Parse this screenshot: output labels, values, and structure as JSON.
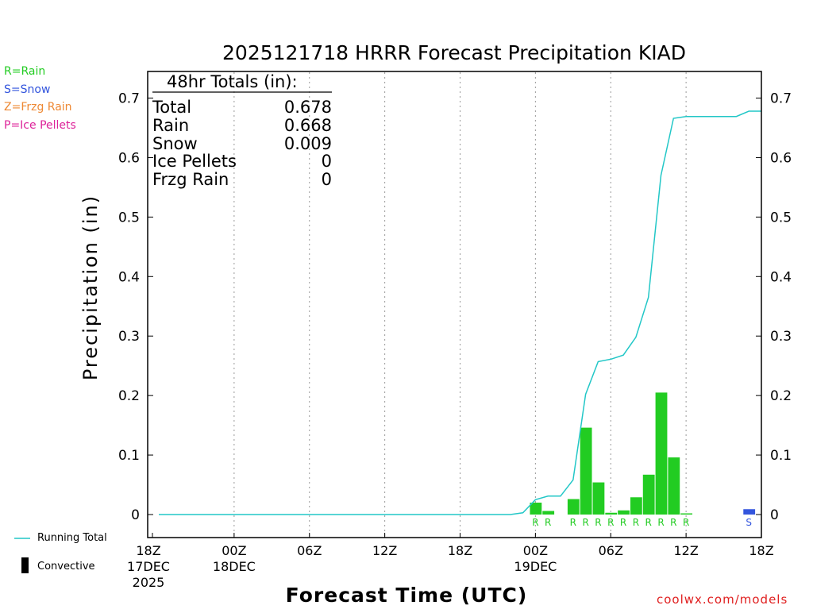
{
  "title": "2025121718 HRRR Forecast Precipitation KIAD",
  "legend": {
    "items": [
      {
        "label": "R=Rain",
        "color": "#22cc22"
      },
      {
        "label": "S=Snow",
        "color": "#3355dd"
      },
      {
        "label": "Z=Frzg Rain",
        "color": "#ee8833"
      },
      {
        "label": "P=Ice Pellets",
        "color": "#dd2299"
      }
    ],
    "running_total": "Running Total",
    "convective": "Convective"
  },
  "totals": {
    "header": "48hr Totals (in):",
    "rows": [
      {
        "label": "Total",
        "value": "0.678"
      },
      {
        "label": "Rain",
        "value": "0.668"
      },
      {
        "label": "Snow",
        "value": "0.009"
      },
      {
        "label": "Ice Pellets",
        "value": "0"
      },
      {
        "label": "Frzg Rain",
        "value": "0"
      }
    ]
  },
  "credit": "coolwx.com/models",
  "chart_data": {
    "type": "bar",
    "title": "2025121718 HRRR Forecast Precipitation KIAD",
    "xlabel": "Forecast Time (UTC)",
    "ylabel": "Precipitation (in)",
    "ylim": [
      -0.04,
      0.75
    ],
    "xlim_hours": [
      0,
      48
    ],
    "grid": "vertical dotted lines at 6-hour intervals",
    "yticks": [
      "0",
      "0.1",
      "0.2",
      "0.3",
      "0.4",
      "0.5",
      "0.6",
      "0.7"
    ],
    "xticks": [
      {
        "hour": 0,
        "label": "18Z",
        "date": "17DEC",
        "year": "2025"
      },
      {
        "hour": 6,
        "label": "00Z",
        "date": "18DEC"
      },
      {
        "hour": 12,
        "label": "06Z"
      },
      {
        "hour": 18,
        "label": "12Z"
      },
      {
        "hour": 24,
        "label": "18Z"
      },
      {
        "hour": 30,
        "label": "00Z",
        "date": "19DEC"
      },
      {
        "hour": 36,
        "label": "06Z"
      },
      {
        "hour": 42,
        "label": "12Z"
      },
      {
        "hour": 48,
        "label": "18Z"
      }
    ],
    "hourly_precip": [
      {
        "hour": 30,
        "value": 0.02,
        "type": "R"
      },
      {
        "hour": 31,
        "value": 0.006,
        "type": "R"
      },
      {
        "hour": 33,
        "value": 0.026,
        "type": "R"
      },
      {
        "hour": 34,
        "value": 0.146,
        "type": "R"
      },
      {
        "hour": 35,
        "value": 0.054,
        "type": "R"
      },
      {
        "hour": 36,
        "value": 0.003,
        "type": "R"
      },
      {
        "hour": 37,
        "value": 0.007,
        "type": "R"
      },
      {
        "hour": 38,
        "value": 0.029,
        "type": "R"
      },
      {
        "hour": 39,
        "value": 0.067,
        "type": "R"
      },
      {
        "hour": 40,
        "value": 0.205,
        "type": "R"
      },
      {
        "hour": 41,
        "value": 0.096,
        "type": "R"
      },
      {
        "hour": 42,
        "value": 0.002,
        "type": "R"
      },
      {
        "hour": 47,
        "value": 0.009,
        "type": "S"
      }
    ],
    "running_total": [
      [
        0,
        0
      ],
      [
        28,
        0
      ],
      [
        29,
        0.003
      ],
      [
        30,
        0.025
      ],
      [
        31,
        0.031
      ],
      [
        32,
        0.031
      ],
      [
        33,
        0.058
      ],
      [
        34,
        0.202
      ],
      [
        35,
        0.257
      ],
      [
        36,
        0.261
      ],
      [
        37,
        0.268
      ],
      [
        38,
        0.298
      ],
      [
        39,
        0.365
      ],
      [
        40,
        0.57
      ],
      [
        41,
        0.666
      ],
      [
        42,
        0.669
      ],
      [
        46,
        0.669
      ],
      [
        47,
        0.678
      ],
      [
        48,
        0.678
      ]
    ]
  }
}
